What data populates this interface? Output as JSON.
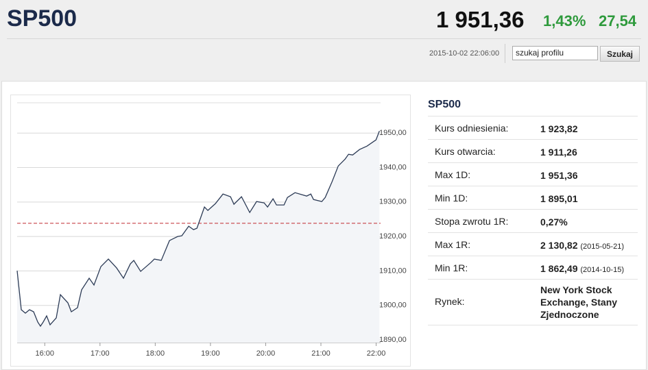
{
  "header": {
    "title": "SP500",
    "price": "1 951,36",
    "change_pct": "1,43%",
    "change": "27,54",
    "datetime": "2015-10-02 22:06:00",
    "search_placeholder": "szukaj profilu",
    "search_button": "Szukaj"
  },
  "chart_data": {
    "type": "line",
    "x": [
      15.5,
      15.575,
      15.649,
      15.724,
      15.798,
      15.873,
      15.922,
      15.972,
      16.034,
      16.096,
      16.208,
      16.283,
      16.419,
      16.481,
      16.593,
      16.667,
      16.804,
      16.891,
      17.016,
      17.152,
      17.301,
      17.425,
      17.55,
      17.612,
      17.736,
      17.922,
      17.984,
      18.109,
      18.258,
      18.407,
      18.481,
      18.606,
      18.693,
      18.755,
      18.891,
      18.953,
      19.09,
      19.227,
      19.363,
      19.425,
      19.562,
      19.711,
      19.835,
      19.972,
      20.034,
      20.133,
      20.196,
      20.332,
      20.394,
      20.531,
      20.742,
      20.817,
      20.866,
      21.016,
      21.078,
      21.202,
      21.314,
      21.438,
      21.5,
      21.575,
      21.699,
      21.835,
      21.96,
      21.997,
      22.059
    ],
    "series": [
      {
        "name": "SP500",
        "color": "#2b3a55",
        "values": [
          1910.07,
          1898.74,
          1897.75,
          1898.74,
          1898.15,
          1895.17,
          1893.97,
          1895.17,
          1896.95,
          1894.37,
          1896.36,
          1903.11,
          1900.73,
          1898.15,
          1899.34,
          1904.5,
          1907.88,
          1905.9,
          1911.26,
          1913.45,
          1910.86,
          1907.88,
          1912.06,
          1913.05,
          1909.87,
          1912.45,
          1913.45,
          1913.05,
          1918.81,
          1920.0,
          1920.2,
          1922.98,
          1921.99,
          1922.39,
          1928.55,
          1927.55,
          1929.54,
          1932.32,
          1931.53,
          1929.34,
          1931.53,
          1926.96,
          1930.14,
          1929.74,
          1928.55,
          1930.93,
          1929.14,
          1929.14,
          1931.33,
          1932.72,
          1931.73,
          1932.32,
          1930.73,
          1930.14,
          1931.33,
          1935.9,
          1940.47,
          1942.46,
          1943.85,
          1943.65,
          1945.24,
          1946.23,
          1947.62,
          1948.02,
          1950.6
        ]
      }
    ],
    "reference_line": 1923.82,
    "reference_color": "#c0282d",
    "xlim": [
      15.5,
      22.08
    ],
    "ylim": [
      1889.2,
      1958.8
    ],
    "xticks": [
      {
        "value": 16,
        "label": "16:00"
      },
      {
        "value": 17,
        "label": "17:00"
      },
      {
        "value": 18,
        "label": "18:00"
      },
      {
        "value": 19,
        "label": "19:00"
      },
      {
        "value": 20,
        "label": "20:00"
      },
      {
        "value": 21,
        "label": "21:00"
      },
      {
        "value": 22,
        "label": "22:00"
      }
    ],
    "yticks": [
      {
        "value": 1890,
        "label": "1890,00"
      },
      {
        "value": 1900,
        "label": "1900,00"
      },
      {
        "value": 1910,
        "label": "1910,00"
      },
      {
        "value": 1920,
        "label": "1920,00"
      },
      {
        "value": 1930,
        "label": "1930,00"
      },
      {
        "value": 1940,
        "label": "1940,00"
      },
      {
        "value": 1950,
        "label": "1950,00"
      }
    ],
    "grid": true
  },
  "info": {
    "title": "SP500",
    "rows": [
      {
        "label": "Kurs odniesienia:",
        "value": "1 923,82"
      },
      {
        "label": "Kurs otwarcia:",
        "value": "1 911,26"
      },
      {
        "label": "Max 1D:",
        "value": "1 951,36"
      },
      {
        "label": "Min 1D:",
        "value": "1 895,01"
      },
      {
        "label": "Stopa zwrotu 1R:",
        "value": "0,27%"
      },
      {
        "label": "Max 1R:",
        "value": "2 130,82",
        "date": "(2015-05-21)"
      },
      {
        "label": "Min 1R:",
        "value": "1 862,49",
        "date": "(2014-10-15)"
      },
      {
        "label": "Rynek:",
        "value": "New York Stock Exchange, Stany Zjednoczone"
      }
    ]
  }
}
